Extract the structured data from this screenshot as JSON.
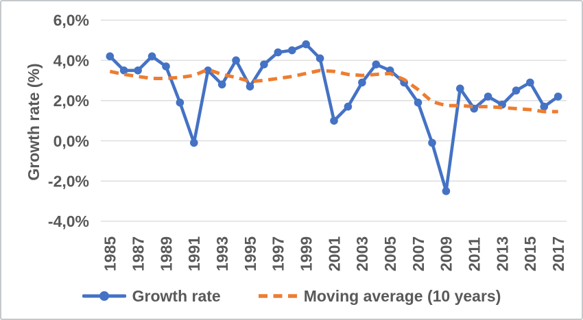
{
  "chart_data": {
    "type": "line",
    "title": "",
    "ylabel": "Growth rate (%)",
    "xlabel": "",
    "x": [
      1985,
      1986,
      1987,
      1988,
      1989,
      1990,
      1991,
      1992,
      1993,
      1994,
      1995,
      1996,
      1997,
      1998,
      1999,
      2000,
      2001,
      2002,
      2003,
      2004,
      2005,
      2006,
      2007,
      2008,
      2009,
      2010,
      2011,
      2012,
      2013,
      2014,
      2015,
      2016,
      2017
    ],
    "x_tick_labels": [
      "1985",
      "1987",
      "1989",
      "1991",
      "1993",
      "1995",
      "1997",
      "1999",
      "2001",
      "2003",
      "2005",
      "2007",
      "2009",
      "2011",
      "2013",
      "2015",
      "2017"
    ],
    "y_ticks": [
      {
        "value": 6,
        "label": "6,0%"
      },
      {
        "value": 4,
        "label": "4,0%"
      },
      {
        "value": 2,
        "label": "2,0%"
      },
      {
        "value": 0,
        "label": "0,0%"
      },
      {
        "value": -2,
        "label": "-2,0%"
      },
      {
        "value": -4,
        "label": "-4,0%"
      }
    ],
    "ylim": [
      -4.7,
      6.5
    ],
    "grid": "horizontal",
    "legend_position": "bottom",
    "text_color": "#595959",
    "gridline_color": "#D9D9D9",
    "series": [
      {
        "name": "Growth rate",
        "color": "#4472C4",
        "line_style": "solid",
        "marker": "circle",
        "values": [
          4.2,
          3.5,
          3.5,
          4.2,
          3.7,
          1.9,
          -0.1,
          3.5,
          2.8,
          4.0,
          2.7,
          3.8,
          4.4,
          4.5,
          4.8,
          4.1,
          1.0,
          1.7,
          2.9,
          3.8,
          3.5,
          2.9,
          1.9,
          -0.1,
          -2.5,
          2.6,
          1.6,
          2.2,
          1.8,
          2.5,
          2.9,
          1.7,
          2.2
        ]
      },
      {
        "name": "Moving average (10 years)",
        "color": "#ED7D31",
        "line_style": "dashed",
        "marker": "none",
        "values": [
          3.45,
          3.3,
          3.2,
          3.1,
          3.1,
          3.15,
          3.25,
          3.55,
          3.3,
          3.15,
          2.95,
          3.0,
          3.1,
          3.2,
          3.35,
          3.5,
          3.45,
          3.3,
          3.25,
          3.3,
          3.35,
          3.05,
          2.55,
          1.95,
          1.75,
          1.75,
          1.7,
          1.7,
          1.65,
          1.6,
          1.55,
          1.45,
          1.45
        ]
      }
    ]
  }
}
